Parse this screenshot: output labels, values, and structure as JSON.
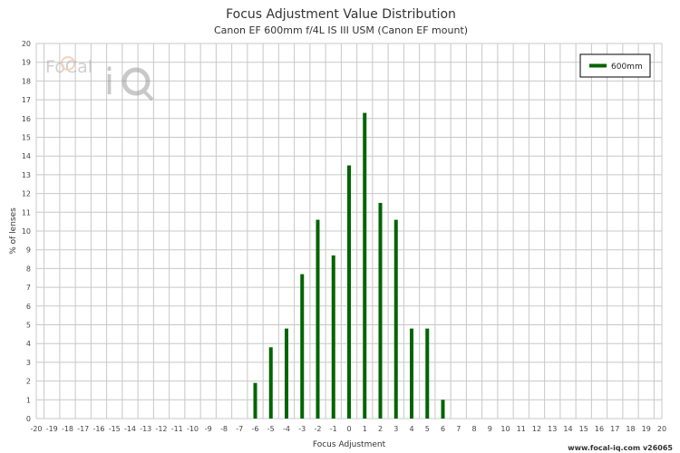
{
  "chart_data": {
    "type": "bar",
    "title": "Focus Adjustment Value Distribution",
    "subtitle": "Canon EF 600mm f/4L IS III USM (Canon EF mount)",
    "xlabel": "Focus Adjustment",
    "ylabel": "% of lenses",
    "xlim": [
      -20,
      20
    ],
    "ylim": [
      0,
      20
    ],
    "grid": true,
    "legend_position": "top-right",
    "series": [
      {
        "name": "600mm",
        "color": "#006400",
        "x": [
          -6,
          -5,
          -4,
          -3,
          -2,
          -1,
          0,
          1,
          2,
          3,
          4,
          5,
          6
        ],
        "values": [
          1.9,
          3.8,
          4.8,
          7.7,
          10.6,
          8.7,
          13.5,
          16.3,
          11.5,
          10.6,
          4.8,
          4.8,
          1.0
        ]
      }
    ]
  },
  "logo": {
    "text": "FoCal iQ"
  },
  "credit": "www.focal-iq.com  v26065"
}
